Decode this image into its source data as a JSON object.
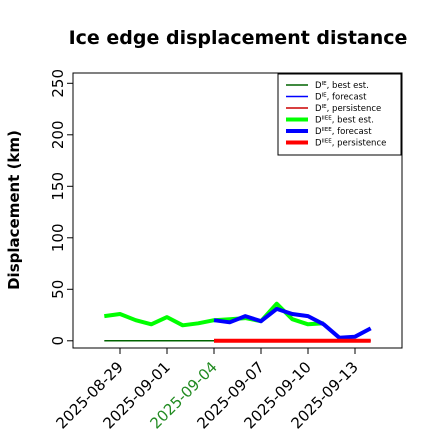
{
  "chart_data": {
    "type": "line",
    "title": "Ice edge displacement distance",
    "ylabel": "Displacement (km)",
    "xlabel": "",
    "ylim": [
      0,
      250
    ],
    "yticks": [
      0,
      50,
      100,
      150,
      200,
      250
    ],
    "xlim": [
      "2025-08-26",
      "2025-09-16"
    ],
    "xticks": [
      "2025-08-29",
      "2025-09-01",
      "2025-09-04",
      "2025-09-07",
      "2025-09-10",
      "2025-09-13"
    ],
    "highlight_tick": "2025-09-04",
    "highlight_color": "#228B22",
    "legend_position": "top-right",
    "series": [
      {
        "name": "D^IE, best est.",
        "base": "D",
        "sup": "IE",
        "suffix": ", best est.",
        "color": "#006400",
        "width": 1.5,
        "x": [
          "2025-08-28",
          "2025-09-04"
        ],
        "y": [
          0,
          0
        ]
      },
      {
        "name": "D^IE, forecast",
        "base": "D",
        "sup": "IE",
        "suffix": ", forecast",
        "color": "#0000ff",
        "width": 1.5,
        "x": [
          "2025-09-04",
          "2025-09-14"
        ],
        "y": [
          0,
          0
        ]
      },
      {
        "name": "D^IE, persistence",
        "base": "D",
        "sup": "IE",
        "suffix": ", persistence",
        "color": "#cc0000",
        "width": 1.5,
        "x": [
          "2025-09-04",
          "2025-09-14"
        ],
        "y": [
          0,
          0
        ]
      },
      {
        "name": "D^IIEE, best est.",
        "base": "D",
        "sup": "IIEE",
        "suffix": ", best est.",
        "color": "#00ff00",
        "width": 4,
        "x": [
          "2025-08-28",
          "2025-08-29",
          "2025-08-30",
          "2025-08-31",
          "2025-09-01",
          "2025-09-02",
          "2025-09-03",
          "2025-09-04",
          "2025-09-05",
          "2025-09-06",
          "2025-09-07",
          "2025-09-08",
          "2025-09-09",
          "2025-09-10",
          "2025-09-11"
        ],
        "y": [
          24,
          26,
          20,
          16,
          23,
          15,
          17,
          20,
          21,
          22,
          19,
          36,
          21,
          16,
          17
        ]
      },
      {
        "name": "D^IIEE, forecast",
        "base": "D",
        "sup": "IIEE",
        "suffix": ", forecast",
        "color": "#0000ff",
        "width": 4,
        "x": [
          "2025-09-04",
          "2025-09-05",
          "2025-09-06",
          "2025-09-07",
          "2025-09-08",
          "2025-09-09",
          "2025-09-10",
          "2025-09-11",
          "2025-09-12",
          "2025-09-13",
          "2025-09-14"
        ],
        "y": [
          20,
          18,
          24,
          19,
          31,
          26,
          24,
          16,
          3,
          4,
          12
        ]
      },
      {
        "name": "D^IIEE, persistence",
        "base": "D",
        "sup": "IIEE",
        "suffix": ", persistence",
        "color": "#ff0000",
        "width": 4,
        "x": [
          "2025-09-04",
          "2025-09-14"
        ],
        "y": [
          0,
          0
        ]
      }
    ]
  }
}
